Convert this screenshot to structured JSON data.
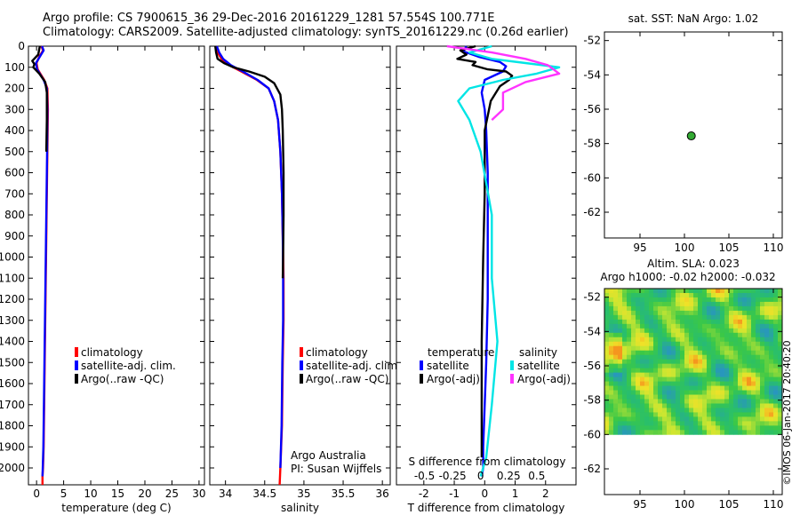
{
  "header": {
    "line1": "Argo profile: CS 7900615_36 29-Dec-2016 20161229_1281 57.554S 100.771E",
    "line2": "Climatology: CARS2009. Satellite-adjusted climatology: synTS_20161229.nc (0.26d earlier)"
  },
  "colors": {
    "climatology": "#ff0000",
    "satellite": "#0000ff",
    "argo": "#000000",
    "sal_satellite": "#00e5e5",
    "sal_argo": "#ff33ff",
    "marker": "#33aa33"
  },
  "chart_data": [
    {
      "id": "temperature",
      "type": "line",
      "xlabel": "temperature (deg C)",
      "ylabel": "",
      "xlim": [
        -1.5,
        31
      ],
      "ylim": [
        2080,
        0
      ],
      "xticks": [
        0,
        5,
        10,
        15,
        20,
        25,
        30
      ],
      "yticks": [
        0,
        100,
        200,
        300,
        400,
        500,
        600,
        700,
        800,
        900,
        1000,
        1100,
        1200,
        1300,
        1400,
        1500,
        1600,
        1700,
        1800,
        1900,
        2000
      ],
      "legend": [
        "climatology",
        "satellite-adj. clim.",
        "Argo(..raw -QC)"
      ],
      "legend_position": "lower-center",
      "series": [
        {
          "name": "climatology",
          "color_key": "climatology",
          "x": [
            0.9,
            1.2,
            0.5,
            0.0,
            0.2,
            1.4,
            2.0,
            2.1,
            2.0,
            1.9,
            1.8,
            1.7,
            1.6,
            1.5,
            1.4,
            1.3,
            1.2,
            1.1,
            1.1
          ],
          "y": [
            0,
            20,
            50,
            80,
            110,
            160,
            200,
            300,
            500,
            700,
            900,
            1100,
            1300,
            1500,
            1700,
            1900,
            2000,
            2040,
            2080
          ]
        },
        {
          "name": "satellite-adj. clim.",
          "color_key": "satellite",
          "x": [
            1.0,
            1.3,
            0.6,
            -0.1,
            0.1,
            1.3,
            1.9,
            2.0,
            1.95,
            1.85,
            1.75,
            1.65,
            1.55,
            1.45,
            1.35,
            1.25,
            1.15,
            1.1
          ],
          "y": [
            0,
            20,
            50,
            80,
            110,
            160,
            200,
            300,
            500,
            700,
            900,
            1100,
            1300,
            1500,
            1700,
            1900,
            2000,
            2040
          ]
        },
        {
          "name": "Argo(..raw -QC)",
          "color_key": "argo",
          "x": [
            0.6,
            0.3,
            -0.8,
            -0.4,
            -0.6,
            0.5,
            1.6,
            1.9,
            1.9,
            1.8
          ],
          "y": [
            0,
            40,
            70,
            85,
            100,
            130,
            170,
            220,
            350,
            500
          ]
        }
      ],
      "annotations": []
    },
    {
      "id": "salinity",
      "type": "line",
      "xlabel": "salinity",
      "ylabel": "",
      "xlim": [
        33.8,
        36.1
      ],
      "ylim": [
        2080,
        0
      ],
      "xticks": [
        34,
        34.5,
        35,
        35.5,
        36
      ],
      "legend": [
        "climatology",
        "satellite-adj. clim.",
        "Argo(..raw -QC)"
      ],
      "legend_position": "lower-right",
      "annotations": [
        "Argo Australia",
        "PI: Susan Wijffels"
      ],
      "series": [
        {
          "name": "climatology",
          "color_key": "climatology",
          "x": [
            33.88,
            33.9,
            33.95,
            34.05,
            34.2,
            34.4,
            34.55,
            34.62,
            34.67,
            34.7,
            34.72,
            34.73,
            34.74,
            34.74,
            34.73,
            34.72,
            34.7,
            34.69
          ],
          "y": [
            0,
            30,
            60,
            90,
            120,
            160,
            200,
            260,
            350,
            500,
            700,
            900,
            1100,
            1300,
            1500,
            1800,
            2000,
            2080
          ]
        },
        {
          "name": "satellite-adj. clim.",
          "color_key": "satellite",
          "x": [
            33.89,
            33.92,
            33.97,
            34.07,
            34.22,
            34.41,
            34.55,
            34.62,
            34.67,
            34.7,
            34.72,
            34.73,
            34.735,
            34.735,
            34.725,
            34.715,
            34.7
          ],
          "y": [
            0,
            30,
            60,
            90,
            120,
            160,
            200,
            260,
            350,
            500,
            700,
            900,
            1100,
            1300,
            1500,
            1800,
            2000
          ]
        },
        {
          "name": "Argo(..raw -QC)",
          "color_key": "argo",
          "x": [
            33.87,
            33.88,
            33.9,
            33.98,
            34.1,
            34.3,
            34.5,
            34.62,
            34.7,
            34.72,
            34.73,
            34.74,
            34.74,
            34.735,
            34.73
          ],
          "y": [
            0,
            30,
            60,
            80,
            100,
            120,
            145,
            175,
            230,
            300,
            400,
            600,
            800,
            1000,
            1100
          ]
        }
      ]
    },
    {
      "id": "difference",
      "type": "line",
      "xlabel": "T difference from climatology",
      "xlabel_top": "S difference from climatology",
      "ylabel": "",
      "xlim": [
        -2.9,
        3.0
      ],
      "ylim": [
        2080,
        0
      ],
      "xticks": [
        -2,
        -1,
        0,
        1,
        2
      ],
      "sticks": [
        -0.5,
        -0.25,
        0,
        0.25,
        0.5
      ],
      "legend_titles": [
        "temperature",
        "salinity"
      ],
      "legend": [
        "satellite",
        "Argo(-adj)",
        "satellite",
        "Argo(-adj)"
      ],
      "legend_position": "lower-center",
      "series": [
        {
          "name": "satellite",
          "color_key": "satellite",
          "x": [
            -0.6,
            -0.7,
            -0.2,
            0.5,
            0.7,
            0.6,
            0.0,
            -0.1,
            0.0,
            0.05,
            0.1,
            0.1,
            0.1,
            0.05,
            0.0,
            -0.05,
            -0.05,
            -0.1
          ],
          "y": [
            0,
            25,
            50,
            75,
            95,
            120,
            160,
            220,
            300,
            400,
            600,
            900,
            1200,
            1500,
            1700,
            1900,
            2000,
            2040
          ]
        },
        {
          "name": "Argo(-adj)",
          "color_key": "argo",
          "x": [
            -0.3,
            -0.8,
            -0.6,
            -0.9,
            -0.3,
            -0.4,
            0.1,
            0.7,
            0.9,
            0.8,
            0.5,
            0.2,
            0.0,
            0.0,
            -0.05,
            -0.1,
            -0.1,
            -0.1
          ],
          "y": [
            0,
            20,
            40,
            60,
            75,
            90,
            110,
            120,
            140,
            160,
            190,
            260,
            400,
            700,
            1000,
            1400,
            1800,
            1950
          ]
        },
        {
          "name": "satellite",
          "color_key": "sal_satellite",
          "x": [
            0.1,
            -0.1,
            0.1,
            0.4,
            0.7,
            0.5,
            0.2,
            -0.1,
            -0.2,
            -0.1,
            0.0,
            0.1,
            0.1,
            0.15,
            0.1,
            0.05,
            0.0
          ],
          "y": [
            0,
            30,
            60,
            80,
            100,
            130,
            160,
            200,
            260,
            350,
            500,
            800,
            1100,
            1400,
            1700,
            1950,
            2040
          ]
        },
        {
          "name": "Argo(-adj)",
          "color_key": "sal_argo",
          "x": [
            -0.3,
            0.1,
            0.4,
            0.6,
            0.7,
            0.4,
            0.2,
            0.2,
            0.1
          ],
          "y": [
            0,
            30,
            60,
            90,
            130,
            170,
            220,
            300,
            350
          ]
        }
      ]
    },
    {
      "id": "sst-map",
      "type": "scatter",
      "title": "sat. SST: NaN Argo: 1.02",
      "xlim": [
        91,
        111
      ],
      "ylim": [
        -63.5,
        -51.5
      ],
      "xticks": [
        95,
        100,
        105,
        110
      ],
      "yticks": [
        -52,
        -54,
        -56,
        -58,
        -60,
        -62
      ],
      "points": [
        {
          "x": 100.771,
          "y": -57.554
        }
      ]
    },
    {
      "id": "sla-map",
      "type": "heatmap",
      "title": "Altim. SLA: 0.023",
      "subtitle": "Argo h1000: -0.02 h2000: -0.032",
      "xlim": [
        91,
        111
      ],
      "ylim": [
        -63.5,
        -51.5
      ],
      "xticks": [
        95,
        100,
        105,
        110
      ],
      "yticks": [
        -52,
        -54,
        -56,
        -58,
        -60,
        -62
      ],
      "data_extent": {
        "lon": [
          91,
          111
        ],
        "lat": [
          -60,
          -51.5
        ]
      },
      "watermark": "©IMOS 06-Jan-2017 20:40:20"
    }
  ]
}
